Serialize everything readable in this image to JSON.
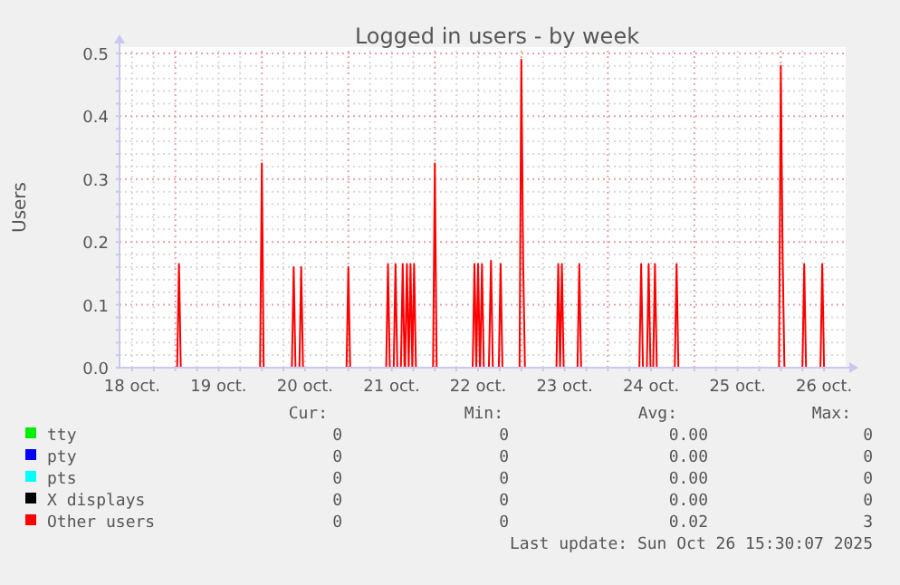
{
  "chart_data": {
    "type": "line",
    "title": "Logged in users - by week",
    "ylabel": "Users",
    "xlim": [
      "2025-10-18T08:30",
      "2025-10-26T18:00"
    ],
    "ylim": [
      0,
      0.51
    ],
    "xticks": [
      {
        "value": "2025-10-18T12:00",
        "label": "18 oct."
      },
      {
        "value": "2025-10-18T18:00",
        "label": null
      },
      {
        "value": "2025-10-19T00:00",
        "label": null
      },
      {
        "value": "2025-10-19T06:00",
        "label": null
      },
      {
        "value": "2025-10-19T12:00",
        "label": "19 oct."
      },
      {
        "value": "2025-10-19T18:00",
        "label": null
      },
      {
        "value": "2025-10-20T00:00",
        "label": null
      },
      {
        "value": "2025-10-20T06:00",
        "label": null
      },
      {
        "value": "2025-10-20T12:00",
        "label": "20 oct."
      },
      {
        "value": "2025-10-20T18:00",
        "label": null
      },
      {
        "value": "2025-10-21T00:00",
        "label": null
      },
      {
        "value": "2025-10-21T06:00",
        "label": null
      },
      {
        "value": "2025-10-21T12:00",
        "label": "21 oct."
      },
      {
        "value": "2025-10-21T18:00",
        "label": null
      },
      {
        "value": "2025-10-22T00:00",
        "label": null
      },
      {
        "value": "2025-10-22T06:00",
        "label": null
      },
      {
        "value": "2025-10-22T12:00",
        "label": "22 oct."
      },
      {
        "value": "2025-10-22T18:00",
        "label": null
      },
      {
        "value": "2025-10-23T00:00",
        "label": null
      },
      {
        "value": "2025-10-23T06:00",
        "label": null
      },
      {
        "value": "2025-10-23T12:00",
        "label": "23 oct."
      },
      {
        "value": "2025-10-23T18:00",
        "label": null
      },
      {
        "value": "2025-10-24T00:00",
        "label": null
      },
      {
        "value": "2025-10-24T06:00",
        "label": null
      },
      {
        "value": "2025-10-24T12:00",
        "label": "24 oct."
      },
      {
        "value": "2025-10-24T18:00",
        "label": null
      },
      {
        "value": "2025-10-25T00:00",
        "label": null
      },
      {
        "value": "2025-10-25T06:00",
        "label": null
      },
      {
        "value": "2025-10-25T12:00",
        "label": "25 oct."
      },
      {
        "value": "2025-10-25T18:00",
        "label": null
      },
      {
        "value": "2025-10-26T00:00",
        "label": null
      },
      {
        "value": "2025-10-26T06:00",
        "label": null
      },
      {
        "value": "2025-10-26T12:00",
        "label": "26 oct."
      }
    ],
    "yticks": [
      {
        "value": 0,
        "label": "0.0"
      },
      {
        "value": 0.02,
        "label": null
      },
      {
        "value": 0.04,
        "label": null
      },
      {
        "value": 0.06,
        "label": null
      },
      {
        "value": 0.08,
        "label": null
      },
      0.1,
      {
        "value": 0.12,
        "label": null
      },
      {
        "value": 0.14,
        "label": null
      },
      {
        "value": 0.16,
        "label": null
      },
      {
        "value": 0.18,
        "label": null
      },
      0.2,
      {
        "value": 0.22,
        "label": null
      },
      {
        "value": 0.24,
        "label": null
      },
      {
        "value": 0.26,
        "label": null
      },
      {
        "value": 0.28,
        "label": null
      },
      0.3,
      {
        "value": 0.32,
        "label": null
      },
      {
        "value": 0.34,
        "label": null
      },
      {
        "value": 0.36,
        "label": null
      },
      {
        "value": 0.38,
        "label": null
      },
      0.4,
      {
        "value": 0.42,
        "label": null
      },
      {
        "value": 0.44,
        "label": null
      },
      {
        "value": 0.46,
        "label": null
      },
      {
        "value": 0.48,
        "label": null
      },
      0.5
    ],
    "grid": true,
    "legend": "bottom",
    "line_style": "solid",
    "series": [
      {
        "name": "tty",
        "color": "#00ee00"
      },
      {
        "name": "pty",
        "color": "#0000ff"
      },
      {
        "name": "pts",
        "color": "#00ffff"
      },
      {
        "name": "X displays",
        "color": "#000000"
      },
      {
        "name": "Other users",
        "color": "#ff0000",
        "x": [
          "2025-10-18T08:30",
          "2025-10-19T00:30",
          "2025-10-19T01:00",
          "2025-10-19T01:30",
          "2025-10-19T23:30",
          "2025-10-20T00:00",
          "2025-10-20T00:30",
          "2025-10-20T08:20",
          "2025-10-20T08:50",
          "2025-10-20T09:20",
          "2025-10-20T10:25",
          "2025-10-20T10:55",
          "2025-10-20T11:25",
          "2025-10-20T23:30",
          "2025-10-21T00:00",
          "2025-10-21T00:30",
          "2025-10-21T10:30",
          "2025-10-21T11:00",
          "2025-10-21T11:30",
          "2025-10-21T12:35",
          "2025-10-21T13:05",
          "2025-10-21T13:35",
          "2025-10-21T14:35",
          "2025-10-21T15:05",
          "2025-10-21T15:35",
          "2025-10-21T15:45",
          "2025-10-21T16:15",
          "2025-10-21T16:45",
          "2025-10-21T17:15",
          "2025-10-21T17:45",
          "2025-10-21T18:15",
          "2025-10-21T18:45",
          "2025-10-21T23:30",
          "2025-10-22T00:00",
          "2025-10-22T00:30",
          "2025-10-22T10:30",
          "2025-10-22T11:00",
          "2025-10-22T11:30",
          "2025-10-22T12:00",
          "2025-10-22T12:30",
          "2025-10-22T12:35",
          "2025-10-22T13:05",
          "2025-10-22T13:35",
          "2025-10-22T15:00",
          "2025-10-22T15:35",
          "2025-10-22T16:05",
          "2025-10-22T17:45",
          "2025-10-22T18:15",
          "2025-10-22T18:45",
          "2025-10-22T23:30",
          "2025-10-23T00:00",
          "2025-10-23T00:30",
          "2025-10-23T01:00",
          "2025-10-23T09:45",
          "2025-10-23T10:15",
          "2025-10-23T10:45",
          "2025-10-23T11:15",
          "2025-10-23T11:45",
          "2025-10-23T15:35",
          "2025-10-23T16:05",
          "2025-10-23T16:35",
          "2025-10-24T08:45",
          "2025-10-24T09:15",
          "2025-10-24T09:45",
          "2025-10-24T10:50",
          "2025-10-24T11:20",
          "2025-10-24T11:50",
          "2025-10-24T12:35",
          "2025-10-24T13:05",
          "2025-10-24T13:35",
          "2025-10-24T18:35",
          "2025-10-24T19:05",
          "2025-10-24T19:35",
          "2025-10-25T23:30",
          "2025-10-26T00:00",
          "2025-10-26T00:30",
          "2025-10-26T01:00",
          "2025-10-26T06:00",
          "2025-10-26T06:30",
          "2025-10-26T07:00",
          "2025-10-26T11:00",
          "2025-10-26T11:30",
          "2025-10-26T12:00",
          "2025-10-26T18:00"
        ],
        "values": [
          0,
          0,
          0.165,
          0,
          0,
          0.325,
          0,
          0,
          0.16,
          0,
          0,
          0.16,
          0,
          0,
          0.16,
          0,
          0,
          0.165,
          0,
          0,
          0.165,
          0,
          0,
          0.165,
          0,
          0,
          0.165,
          0,
          0.165,
          0,
          0.165,
          0,
          0,
          0.325,
          0,
          0,
          0.165,
          0,
          0.165,
          0,
          0,
          0.165,
          0,
          0,
          0.17,
          0,
          0,
          0.165,
          0,
          0,
          0.49,
          0.17,
          0,
          0,
          0.165,
          0,
          0.165,
          0,
          0,
          0.165,
          0,
          0,
          0.165,
          0,
          0,
          0.165,
          0,
          0,
          0.165,
          0,
          0,
          0.165,
          0,
          0,
          0.48,
          0.18,
          0,
          0,
          0.165,
          0,
          0,
          0.165,
          0,
          0
        ]
      }
    ],
    "annotations": [
      "Cur:",
      "Min:",
      "Avg:",
      "Max:",
      "0",
      "0",
      "0.00",
      "0",
      "0",
      "0",
      "0.00",
      "0",
      "0",
      "0",
      "0.00",
      "0",
      "0",
      "0",
      "0.00",
      "0",
      "0",
      "0",
      "0.02",
      "3",
      "Last update: Sun Oct 26 15:30:07 2025"
    ]
  }
}
